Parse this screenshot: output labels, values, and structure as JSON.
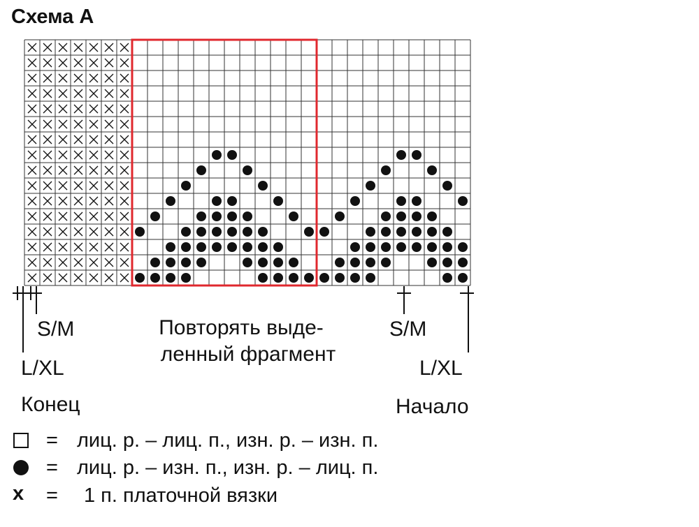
{
  "header": {
    "title": "Схема А"
  },
  "markers": {
    "left_size_1": "S/M",
    "left_size_2": "L/XL",
    "right_size_1": "S/M",
    "right_size_2": "L/XL",
    "end": "Конец",
    "start": "Начало"
  },
  "repeat_note": [
    "Повторять выде-",
    "ленный фрагмент"
  ],
  "legend": [
    {
      "symbol": null,
      "eq": "=",
      "text": "лиц. р. – лиц. п., изн. р. – изн. п."
    },
    {
      "symbol": null,
      "eq": "=",
      "text": "лиц. р. – изн. п., изн. р. – лиц. п."
    },
    {
      "symbol": "x",
      "eq": "=",
      "text": "1 п. платочной вязки"
    }
  ]
}
